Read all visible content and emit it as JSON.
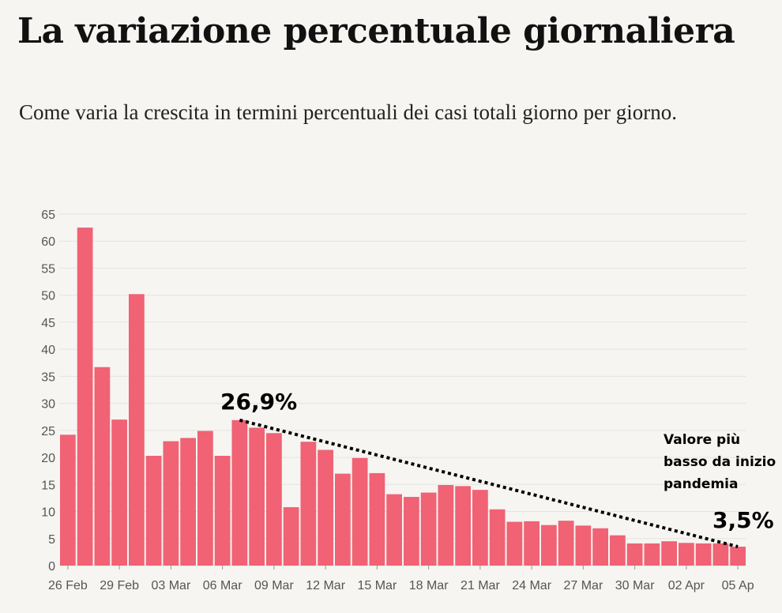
{
  "title": "La variazione percentuale giornaliera",
  "subtitle": "Come varia la crescita in termini percentuali dei casi totali giorno per giorno.",
  "colors": {
    "bar": "#f06274",
    "grid": "#e6e4e0",
    "annotation_line": "#000000"
  },
  "annotations": {
    "start_label": "26,9%",
    "end_label": "3,5%",
    "note_lines": [
      "Valore più",
      "basso da inizio",
      "pandemia"
    ]
  },
  "chart_data": {
    "type": "bar",
    "categories": [
      "26 Feb",
      "27 Feb",
      "28 Feb",
      "29 Feb",
      "01 Mar",
      "02 Mar",
      "03 Mar",
      "04 Mar",
      "05 Mar",
      "06 Mar",
      "07 Mar",
      "08 Mar",
      "09 Mar",
      "10 Mar",
      "11 Mar",
      "12 Mar",
      "13 Mar",
      "14 Mar",
      "15 Mar",
      "16 Mar",
      "17 Mar",
      "18 Mar",
      "19 Mar",
      "20 Mar",
      "21 Mar",
      "22 Mar",
      "23 Mar",
      "24 Mar",
      "25 Mar",
      "26 Mar",
      "27 Mar",
      "28 Mar",
      "29 Mar",
      "30 Mar",
      "31 Mar",
      "01 Apr",
      "02 Apr",
      "03 Apr",
      "04 Apr",
      "05 Apr"
    ],
    "values": [
      24.2,
      62.5,
      36.7,
      27.0,
      50.2,
      20.3,
      23.0,
      23.6,
      24.9,
      20.3,
      26.9,
      25.5,
      24.5,
      10.8,
      22.9,
      21.4,
      17.0,
      19.9,
      17.1,
      13.2,
      12.7,
      13.5,
      14.9,
      14.7,
      14.0,
      10.4,
      8.1,
      8.2,
      7.5,
      8.3,
      7.4,
      6.9,
      5.6,
      4.1,
      4.1,
      4.5,
      4.2,
      4.1,
      4.1,
      3.5
    ],
    "x_tick_labels": [
      "26 Feb",
      "29 Feb",
      "03 Mar",
      "06 Mar",
      "09 Mar",
      "12 Mar",
      "15 Mar",
      "18 Mar",
      "21 Mar",
      "24 Mar",
      "27 Mar",
      "30 Mar",
      "02 Apr",
      "05 Ap"
    ],
    "y_ticks": [
      0,
      5,
      10,
      15,
      20,
      25,
      30,
      35,
      40,
      45,
      50,
      55,
      60,
      65
    ],
    "ylim": [
      0,
      65
    ],
    "grid": true,
    "legend": "none",
    "trend_line": {
      "from": "07 Mar",
      "to": "05 Apr",
      "from_value": 26.9,
      "to_value": 3.5,
      "style": "dotted"
    }
  }
}
